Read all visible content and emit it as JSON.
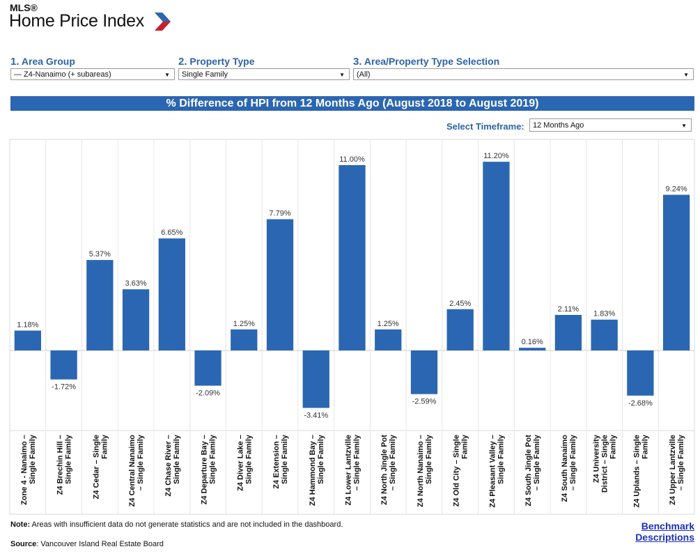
{
  "header": {
    "logo_top": "MLS®",
    "logo_title": "Home Price Index"
  },
  "filters": {
    "area_group": {
      "num": "1.",
      "label": "Area Group",
      "value": "— Z4-Nanaimo (+ subareas)"
    },
    "property_type": {
      "num": "2.",
      "label": "Property Type",
      "value": "Single Family"
    },
    "selection": {
      "num": "3.",
      "label": "Area/Property Type Selection",
      "value": "(All)"
    }
  },
  "title_bar": "% Difference of HPI from 12 Months Ago (August 2018 to August 2019)",
  "timeframe": {
    "label": "Select Timeframe:",
    "value": "12 Months Ago"
  },
  "chart_data": {
    "type": "bar",
    "title": "% Difference of HPI from 12 Months Ago (August 2018 to August 2019)",
    "categories": [
      [
        "Zone 4 - Nanaimo –",
        "Single Family"
      ],
      [
        "Z4 Brechin Hill –",
        "Single Family"
      ],
      [
        "Z4 Cedar – Single",
        "Family"
      ],
      [
        "Z4 Central Nanaimo",
        "– Single Family"
      ],
      [
        "Z4 Chase River –",
        "Single Family"
      ],
      [
        "Z4 Departure Bay –",
        "Single Family"
      ],
      [
        "Z4 Diver Lake –",
        "Single Family"
      ],
      [
        "Z4 Extension –",
        "Single Family"
      ],
      [
        "Z4 Hammond Bay –",
        "Single Family"
      ],
      [
        "Z4 Lower Lantzville",
        "– Single Family"
      ],
      [
        "Z4 North Jingle Pot",
        "– Single Family"
      ],
      [
        "Z4 North Nanaimo –",
        "Single Family"
      ],
      [
        "Z4 Old City – Single",
        "Family"
      ],
      [
        "Z4 Pleasant Valley –",
        "Single Family"
      ],
      [
        "Z4 South Jingle Pot",
        "– Single Family"
      ],
      [
        "Z4 South Nanaimo",
        "– Single Family"
      ],
      [
        "Z4 University",
        "District – Single",
        "Family"
      ],
      [
        "Z4 Uplands – Single",
        "Family"
      ],
      [
        "Z4 Upper Lantzville",
        "– Single Family"
      ]
    ],
    "values": [
      1.18,
      -1.72,
      5.37,
      3.63,
      6.65,
      -2.09,
      1.25,
      7.79,
      -3.41,
      11.0,
      1.25,
      -2.59,
      2.45,
      11.2,
      0.16,
      2.11,
      1.83,
      -2.68,
      9.24
    ],
    "value_labels": [
      "1.18%",
      "-1.72%",
      "5.37%",
      "3.63%",
      "6.65%",
      "-2.09%",
      "1.25%",
      "7.79%",
      "-3.41%",
      "11.00%",
      "1.25%",
      "-2.59%",
      "2.45%",
      "11.20%",
      "0.16%",
      "2.11%",
      "1.83%",
      "-2.68%",
      "9.24%"
    ],
    "ylim": [
      -4.7,
      12.5
    ],
    "bar_color": "#2b66b2",
    "grid": false,
    "legend": "none"
  },
  "footer": {
    "note_bold": "Note:",
    "note_text": " Areas with insufficient data do not generate statistics and are not included in the dashboard.",
    "source_bold": "Source",
    "source_text": ": Vancouver Island Real Estate Board",
    "benchmark_line1": "Benchmark",
    "benchmark_line2": "Descriptions"
  },
  "colors": {
    "accent": "#2b66b2",
    "label_blue": "#2e63a8",
    "link": "#1a2fbf"
  }
}
